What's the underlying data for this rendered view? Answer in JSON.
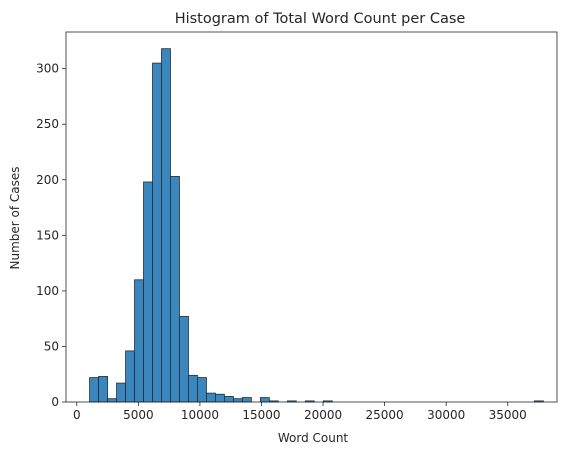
{
  "chart_data": {
    "type": "bar",
    "title": "Histogram of Total Word Count per Case",
    "xlabel": "Word Count",
    "ylabel": "Number of Cases",
    "xlim": [
      -875,
      39000
    ],
    "ylim": [
      0,
      333
    ],
    "xticks": [
      0,
      5000,
      10000,
      15000,
      20000,
      25000,
      30000,
      35000
    ],
    "yticks": [
      0,
      50,
      100,
      150,
      200,
      250,
      300
    ],
    "bin_width": 730,
    "bins": [
      {
        "x0": 1040,
        "x1": 1770,
        "count": 22
      },
      {
        "x0": 1770,
        "x1": 2500,
        "count": 23
      },
      {
        "x0": 2500,
        "x1": 3230,
        "count": 3
      },
      {
        "x0": 3230,
        "x1": 3960,
        "count": 17
      },
      {
        "x0": 3960,
        "x1": 4690,
        "count": 46
      },
      {
        "x0": 4690,
        "x1": 5420,
        "count": 110
      },
      {
        "x0": 5420,
        "x1": 6150,
        "count": 198
      },
      {
        "x0": 6150,
        "x1": 6880,
        "count": 305
      },
      {
        "x0": 6880,
        "x1": 7610,
        "count": 318
      },
      {
        "x0": 7610,
        "x1": 8340,
        "count": 203
      },
      {
        "x0": 8340,
        "x1": 9070,
        "count": 77
      },
      {
        "x0": 9070,
        "x1": 9800,
        "count": 24
      },
      {
        "x0": 9800,
        "x1": 10530,
        "count": 22
      },
      {
        "x0": 10530,
        "x1": 11260,
        "count": 8
      },
      {
        "x0": 11260,
        "x1": 11990,
        "count": 7
      },
      {
        "x0": 11990,
        "x1": 12720,
        "count": 5
      },
      {
        "x0": 12720,
        "x1": 13450,
        "count": 3
      },
      {
        "x0": 13450,
        "x1": 14180,
        "count": 4
      },
      {
        "x0": 14180,
        "x1": 14910,
        "count": 0
      },
      {
        "x0": 14910,
        "x1": 15640,
        "count": 4
      },
      {
        "x0": 15640,
        "x1": 16370,
        "count": 1
      },
      {
        "x0": 16370,
        "x1": 17100,
        "count": 0
      },
      {
        "x0": 17100,
        "x1": 17830,
        "count": 1
      },
      {
        "x0": 17830,
        "x1": 18560,
        "count": 0
      },
      {
        "x0": 18560,
        "x1": 19290,
        "count": 1
      },
      {
        "x0": 20020,
        "x1": 20750,
        "count": 1
      },
      {
        "x0": 37170,
        "x1": 37900,
        "count": 1
      }
    ],
    "colors": {
      "bar_fill": "#3a86bd",
      "bar_stroke": "#1f2f3a",
      "axis": "#262626"
    },
    "grid": false,
    "legend": "none"
  }
}
